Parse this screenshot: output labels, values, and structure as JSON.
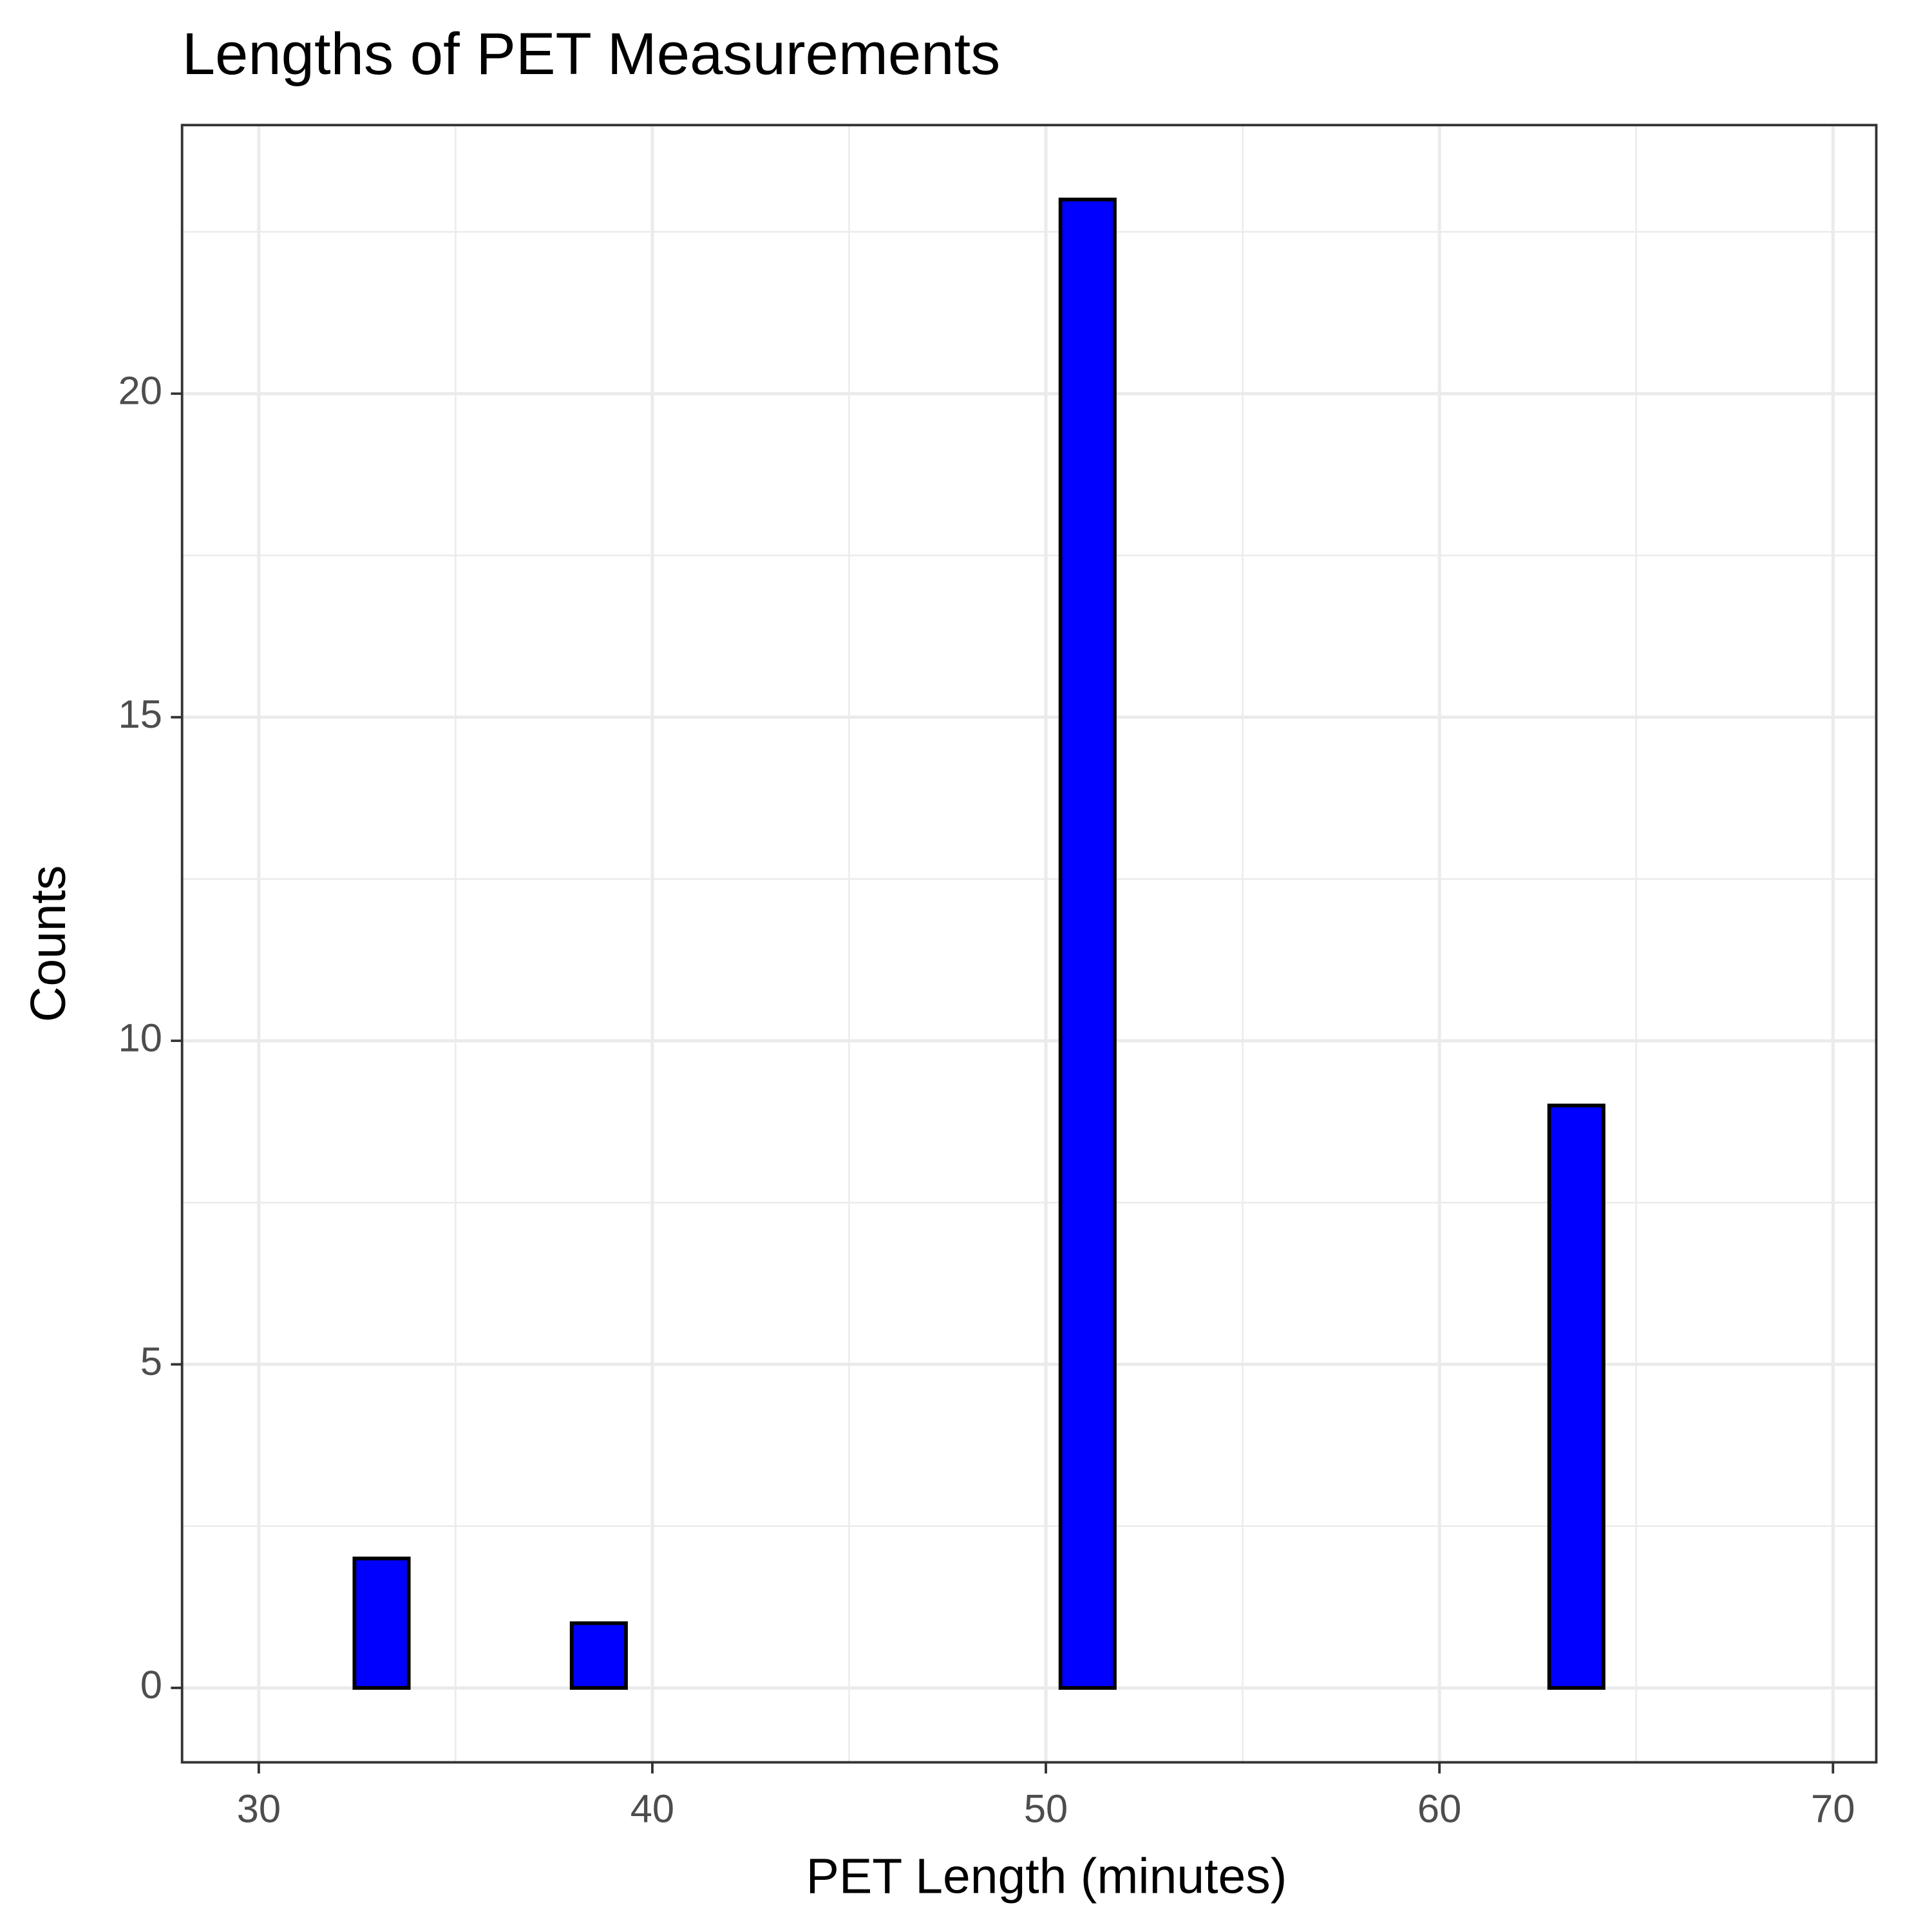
{
  "chart_data": {
    "type": "histogram",
    "title": "Lengths of PET Measurements",
    "x_label": "PET Length (minutes)",
    "y_label": "Counts",
    "bins": [
      31.05,
      32.43,
      33.81,
      35.19,
      36.57,
      37.95,
      39.33,
      40.71,
      42.09,
      43.47,
      44.85,
      46.23,
      47.61,
      48.99,
      50.37,
      51.75,
      53.13,
      54.51,
      55.89,
      57.27,
      58.65,
      60.03,
      61.41,
      62.79,
      64.17,
      65.55,
      66.93,
      68.31,
      69.69
    ],
    "counts": [
      0,
      2,
      0,
      0,
      0,
      1,
      0,
      0,
      0,
      0,
      0,
      0,
      0,
      0,
      23,
      0,
      0,
      0,
      0,
      0,
      0,
      0,
      0,
      9,
      0,
      0,
      0,
      0
    ],
    "color": "#0000ff",
    "edge_color": "#000000",
    "xlim": [
      28.05,
      71.1
    ],
    "xticks": [
      30,
      40,
      50,
      60,
      70
    ],
    "minor_xticks": [
      35,
      45,
      55,
      65
    ],
    "ylim": [
      -1.15,
      24.15
    ],
    "yticks": [
      0,
      5,
      10,
      15,
      20
    ],
    "minor_yticks": [
      2.5,
      7.5,
      12.5,
      17.5,
      22.5
    ],
    "grid": true
  }
}
